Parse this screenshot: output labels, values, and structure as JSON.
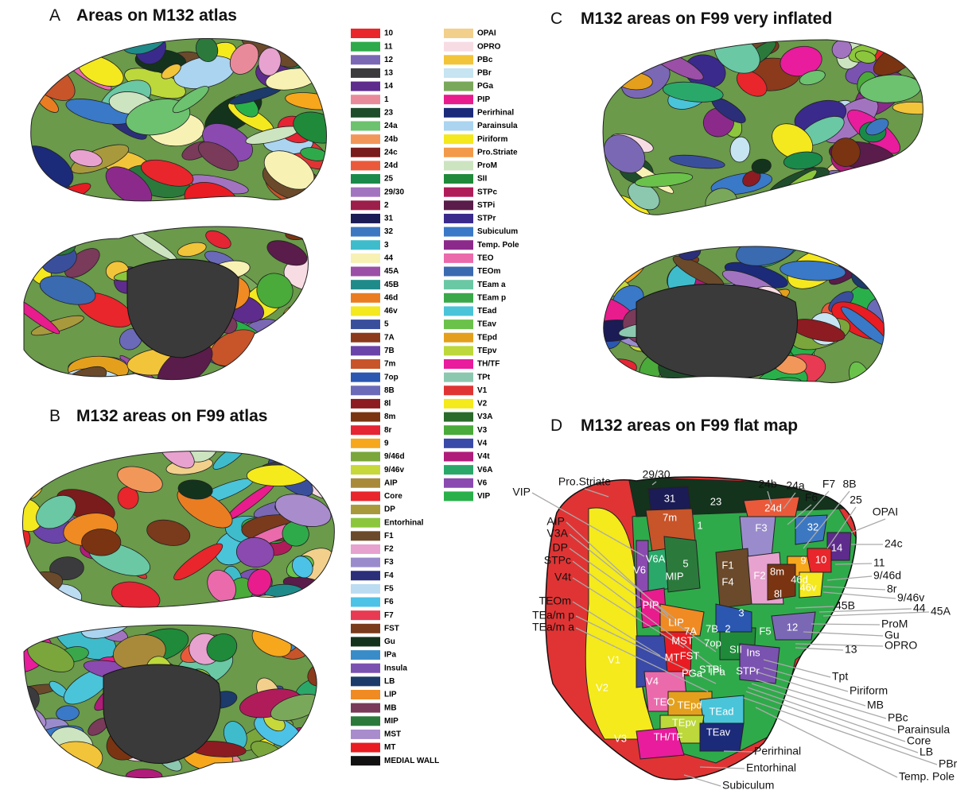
{
  "panels": [
    {
      "letter": "A",
      "title": "Areas on M132 atlas"
    },
    {
      "letter": "B",
      "title": "M132 areas on F99 atlas"
    },
    {
      "letter": "C",
      "title": "M132 areas on F99 very inflated"
    },
    {
      "letter": "D",
      "title": "M132 areas on F99 flat map"
    }
  ],
  "legend": [
    {
      "label": "10",
      "color": "#e8262b"
    },
    {
      "label": "11",
      "color": "#2faa4a"
    },
    {
      "label": "12",
      "color": "#7a68b5"
    },
    {
      "label": "13",
      "color": "#3b3b3d"
    },
    {
      "label": "14",
      "color": "#5e2c8c"
    },
    {
      "label": "1",
      "color": "#e98a9a"
    },
    {
      "label": "23",
      "color": "#1f4d2b"
    },
    {
      "label": "24a",
      "color": "#6cc26f"
    },
    {
      "label": "24b",
      "color": "#f2975a"
    },
    {
      "label": "24c",
      "color": "#7a1c1c"
    },
    {
      "label": "24d",
      "color": "#ea5a3a"
    },
    {
      "label": "25",
      "color": "#198a4a"
    },
    {
      "label": "29/30",
      "color": "#a274c0"
    },
    {
      "label": "2",
      "color": "#9b1f4a"
    },
    {
      "label": "31",
      "color": "#1b1b55"
    },
    {
      "label": "32",
      "color": "#3c78c2"
    },
    {
      "label": "3",
      "color": "#3ebccc"
    },
    {
      "label": "44",
      "color": "#f7f1b4"
    },
    {
      "label": "45A",
      "color": "#9b4fa6"
    },
    {
      "label": "45B",
      "color": "#1f8a8a"
    },
    {
      "label": "46d",
      "color": "#ea7d22"
    },
    {
      "label": "46v",
      "color": "#f4e81e"
    },
    {
      "label": "5",
      "color": "#3a4f9c"
    },
    {
      "label": "7A",
      "color": "#8c3a1c"
    },
    {
      "label": "7B",
      "color": "#6a44a8"
    },
    {
      "label": "7m",
      "color": "#c8542a"
    },
    {
      "label": "7op",
      "color": "#2b57b0"
    },
    {
      "label": "8B",
      "color": "#6a6ab8"
    },
    {
      "label": "8l",
      "color": "#8c1c22"
    },
    {
      "label": "8m",
      "color": "#7a3412"
    },
    {
      "label": "8r",
      "color": "#e52434"
    },
    {
      "label": "9",
      "color": "#f6a71c"
    },
    {
      "label": "9/46d",
      "color": "#7aa63c"
    },
    {
      "label": "9/46v",
      "color": "#c6d83a"
    },
    {
      "label": "AIP",
      "color": "#a88a3a"
    },
    {
      "label": "Core",
      "color": "#e8262b"
    },
    {
      "label": "DP",
      "color": "#a89a3c"
    },
    {
      "label": "Entorhinal",
      "color": "#8cc63c"
    },
    {
      "label": "F1",
      "color": "#6a4a2a"
    },
    {
      "label": "F2",
      "color": "#e7a2cf"
    },
    {
      "label": "F3",
      "color": "#9a8ccc"
    },
    {
      "label": "F4",
      "color": "#2b2f7a"
    },
    {
      "label": "F5",
      "color": "#bcdcf2"
    },
    {
      "label": "F6",
      "color": "#4cc2e6"
    },
    {
      "label": "F7",
      "color": "#e83a52"
    },
    {
      "label": "FST",
      "color": "#7a3a1c"
    },
    {
      "label": "Gu",
      "color": "#13331c"
    },
    {
      "label": "IPa",
      "color": "#3a8cc8"
    },
    {
      "label": "Insula",
      "color": "#7a52b0"
    },
    {
      "label": "LB",
      "color": "#1c3a6a"
    },
    {
      "label": "LIP",
      "color": "#f08a22"
    },
    {
      "label": "MB",
      "color": "#7a3a5a"
    },
    {
      "label": "MIP",
      "color": "#2b7a3c"
    },
    {
      "label": "MST",
      "color": "#a88ccc"
    },
    {
      "label": "MT",
      "color": "#e81c22"
    },
    {
      "label": "MEDIAL WALL",
      "color": "#111111"
    },
    {
      "label": "OPAI",
      "color": "#f2d08c"
    },
    {
      "label": "OPRO",
      "color": "#f8dce4"
    },
    {
      "label": "PBc",
      "color": "#f2c43a"
    },
    {
      "label": "PBr",
      "color": "#c6e4f2"
    },
    {
      "label": "PGa",
      "color": "#7aa85a"
    },
    {
      "label": "PIP",
      "color": "#e81c8c"
    },
    {
      "label": "Perirhinal",
      "color": "#1c2a7a"
    },
    {
      "label": "Parainsula",
      "color": "#aad4f0"
    },
    {
      "label": "Piriform",
      "color": "#f4e81e"
    },
    {
      "label": "Pro.Striate",
      "color": "#f29a4a"
    },
    {
      "label": "ProM",
      "color": "#cce4c0"
    },
    {
      "label": "SII",
      "color": "#1f8a3a"
    },
    {
      "label": "STPc",
      "color": "#b01c5a"
    },
    {
      "label": "STPi",
      "color": "#5a1c4a"
    },
    {
      "label": "STPr",
      "color": "#3a2a8c"
    },
    {
      "label": "Subiculum",
      "color": "#3a78c8"
    },
    {
      "label": "Temp. Pole",
      "color": "#8c2a8c"
    },
    {
      "label": "TEO",
      "color": "#ea6aac"
    },
    {
      "label": "TEOm",
      "color": "#3a6ab0"
    },
    {
      "label": "TEam a",
      "color": "#6ac8a4"
    },
    {
      "label": "TEam p",
      "color": "#3aa84a"
    },
    {
      "label": "TEad",
      "color": "#4ac4d8"
    },
    {
      "label": "TEav",
      "color": "#6ac24a"
    },
    {
      "label": "TEpd",
      "color": "#e4a01c"
    },
    {
      "label": "TEpv",
      "color": "#bcd83a"
    },
    {
      "label": "TH/TF",
      "color": "#e81c9c"
    },
    {
      "label": "TPt",
      "color": "#8cc8b0"
    },
    {
      "label": "V1",
      "color": "#e03434"
    },
    {
      "label": "V2",
      "color": "#f4ea1c"
    },
    {
      "label": "V3A",
      "color": "#2a6a2a"
    },
    {
      "label": "V3",
      "color": "#4aaa3a"
    },
    {
      "label": "V4",
      "color": "#3a4aa8"
    },
    {
      "label": "V4t",
      "color": "#b01c7a"
    },
    {
      "label": "V6A",
      "color": "#2aa86a"
    },
    {
      "label": "V6",
      "color": "#8a4ab0"
    },
    {
      "label": "VIP",
      "color": "#2ab04a"
    }
  ],
  "flat_map": {
    "outer_labels": [
      "Pro.Striate",
      "29/30",
      "24b",
      "24a",
      "F7",
      "8B",
      "F6",
      "25",
      "OPAI",
      "VIP",
      "AIP",
      "V3A",
      "DP",
      "STPc",
      "V4t",
      "TEOm",
      "TEa/m p",
      "TEa/m a",
      "24c",
      "11",
      "9/46d",
      "8r",
      "9/46v",
      "44",
      "45A",
      "45B",
      "ProM",
      "Gu",
      "OPRO",
      "13",
      "Tpt",
      "Piriform",
      "MB",
      "PBc",
      "Parainsula",
      "Core",
      "LB",
      "PBr",
      "Temp. Pole",
      "Perirhinal",
      "Entorhinal",
      "Subiculum"
    ],
    "inner_labels": [
      "31",
      "23",
      "7m",
      "1",
      "24d",
      "F3",
      "32",
      "14",
      "V6A",
      "5",
      "MIP",
      "V6",
      "F1",
      "F4",
      "F2",
      "9",
      "10",
      "8m",
      "46d",
      "8l",
      "46v",
      "PIP",
      "LIP",
      "7A",
      "7B",
      "2",
      "3",
      "F5",
      "12",
      "MST",
      "7op",
      "SII",
      "MT",
      "V1",
      "FST",
      "STPi",
      "Ins",
      "V4",
      "PGa",
      "IPa",
      "STPr",
      "TEO",
      "V2",
      "TEpd",
      "TEad",
      "V3",
      "TEpv",
      "TEav",
      "TH/TF"
    ]
  }
}
